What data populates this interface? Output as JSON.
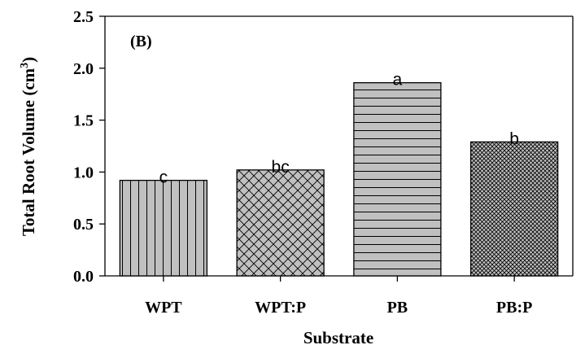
{
  "chart_data": {
    "type": "bar",
    "panel_label": "(B)",
    "categories": [
      "WPT",
      "WPT:P",
      "PB",
      "PB:P"
    ],
    "values": [
      0.92,
      1.02,
      1.86,
      1.29
    ],
    "significance_letters": [
      "c",
      "bc",
      "a",
      "b"
    ],
    "bar_patterns": [
      "vertical-lines",
      "diagonal-crosshatch",
      "horizontal-lines",
      "fine-crosshatch"
    ],
    "bar_fill_color": "#c0c0c0",
    "xlabel": "Substrate",
    "ylabel": "Total Root Volume (cm",
    "ylabel_superscript": "3",
    "ylabel_suffix": ")",
    "ylim": [
      0,
      2.5
    ],
    "yticks": [
      "0.0",
      "0.5",
      "1.0",
      "1.5",
      "2.0",
      "2.5"
    ],
    "grid": false
  }
}
